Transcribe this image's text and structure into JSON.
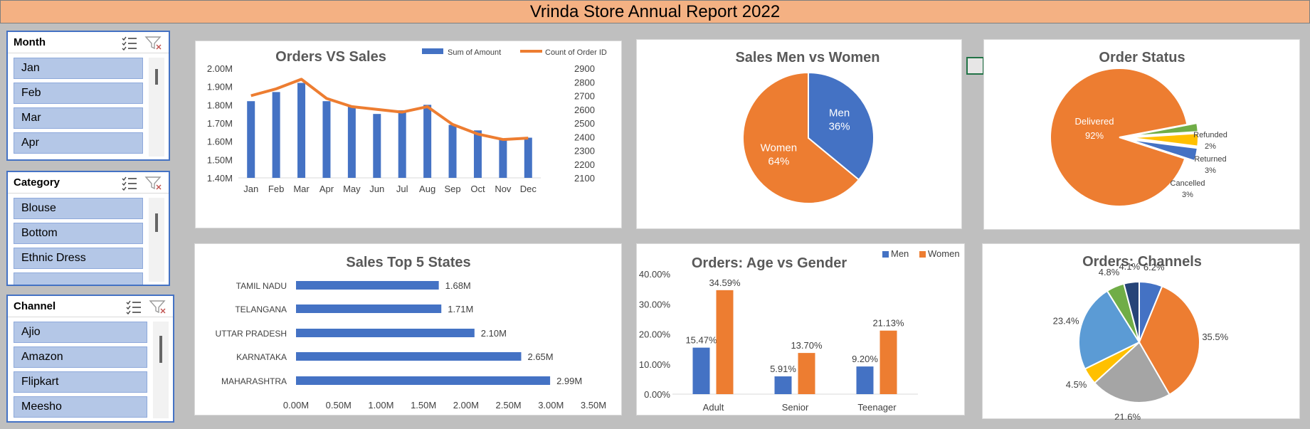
{
  "report_title": "Vrinda Store Annual Report 2022",
  "slicers": {
    "month": {
      "title": "Month",
      "items": [
        "Jan",
        "Feb",
        "Mar",
        "Apr"
      ]
    },
    "category": {
      "title": "Category",
      "items": [
        "Blouse",
        "Bottom",
        "Ethnic Dress",
        ""
      ]
    },
    "channel": {
      "title": "Channel",
      "items": [
        "Ajio",
        "Amazon",
        "Flipkart",
        "Meesho"
      ]
    }
  },
  "icons": {
    "multi_select": "multi-select-icon",
    "clear_filter": "clear-filter-icon"
  },
  "colors": {
    "blue": "#4472c4",
    "orange": "#ed7d31",
    "gray": "#a5a5a5",
    "yellow": "#ffc000",
    "light_blue": "#5b9bd5",
    "green": "#70ad47",
    "navy": "#264478",
    "banner": "#f4b183",
    "slicer_item": "#b4c7e7"
  },
  "chart_data": [
    {
      "type": "bar+line",
      "title": "Orders VS Sales",
      "categories": [
        "Jan",
        "Feb",
        "Mar",
        "Apr",
        "May",
        "Jun",
        "Jul",
        "Aug",
        "Sep",
        "Oct",
        "Nov",
        "Dec"
      ],
      "series": [
        {
          "name": "Sum of Amount",
          "type": "bar",
          "axis": "left",
          "values": [
            1.82,
            1.87,
            1.92,
            1.82,
            1.79,
            1.75,
            1.77,
            1.8,
            1.69,
            1.66,
            1.61,
            1.62
          ]
        },
        {
          "name": "Count of Order ID",
          "type": "line",
          "axis": "right",
          "values": [
            2700,
            2750,
            2820,
            2680,
            2620,
            2600,
            2580,
            2620,
            2490,
            2420,
            2380,
            2390
          ]
        }
      ],
      "y_left": {
        "ticks": [
          "1.40M",
          "1.50M",
          "1.60M",
          "1.70M",
          "1.80M",
          "1.90M",
          "2.00M"
        ],
        "range": [
          1.4,
          2.0
        ]
      },
      "y_right": {
        "ticks": [
          "2100",
          "2200",
          "2300",
          "2400",
          "2500",
          "2600",
          "2700",
          "2800",
          "2900"
        ],
        "range": [
          2100,
          2900
        ]
      },
      "legend": "top-right"
    },
    {
      "type": "pie",
      "title": "Sales Men vs Women",
      "slices": [
        {
          "label": "Men",
          "value": 36,
          "pct": "36%"
        },
        {
          "label": "Women",
          "value": 64,
          "pct": "64%"
        }
      ]
    },
    {
      "type": "pie",
      "title": "Order Status",
      "slices": [
        {
          "label": "Delivered",
          "value": 92,
          "pct": "92%"
        },
        {
          "label": "Refunded",
          "value": 2,
          "pct": "2%"
        },
        {
          "label": "Returned",
          "value": 3,
          "pct": "3%"
        },
        {
          "label": "Cancelled",
          "value": 3,
          "pct": "3%"
        }
      ]
    },
    {
      "type": "bar",
      "orientation": "horizontal",
      "title": "Sales Top 5 States",
      "categories": [
        "TAMIL NADU",
        "TELANGANA",
        "UTTAR PRADESH",
        "KARNATAKA",
        "MAHARASHTRA"
      ],
      "values": [
        1.68,
        1.71,
        2.1,
        2.65,
        2.99
      ],
      "value_labels": [
        "1.68M",
        "1.71M",
        "2.10M",
        "2.65M",
        "2.99M"
      ],
      "x_ticks": [
        "0.00M",
        "0.50M",
        "1.00M",
        "1.50M",
        "2.00M",
        "2.50M",
        "3.00M",
        "3.50M"
      ],
      "xlim": [
        0,
        3.5
      ]
    },
    {
      "type": "bar",
      "title": "Orders: Age vs Gender",
      "categories": [
        "Adult",
        "Senior",
        "Teenager"
      ],
      "series": [
        {
          "name": "Men",
          "values": [
            15.47,
            5.91,
            9.2
          ],
          "labels": [
            "15.47%",
            "5.91%",
            "9.20%"
          ]
        },
        {
          "name": "Women",
          "values": [
            34.59,
            13.7,
            21.13
          ],
          "labels": [
            "34.59%",
            "13.70%",
            "21.13%"
          ]
        }
      ],
      "y_ticks": [
        "0.00%",
        "10.00%",
        "20.00%",
        "30.00%",
        "40.00%"
      ],
      "ylim": [
        0,
        40
      ],
      "legend": "top-right"
    },
    {
      "type": "pie",
      "title": "Orders: Channels",
      "slices": [
        {
          "value": 6.2,
          "pct": "6.2%"
        },
        {
          "value": 35.5,
          "pct": "35.5%"
        },
        {
          "value": 21.6,
          "pct": "21.6%"
        },
        {
          "value": 4.5,
          "pct": "4.5%"
        },
        {
          "value": 23.4,
          "pct": "23.4%"
        },
        {
          "value": 4.8,
          "pct": "4.8%"
        },
        {
          "value": 4.1,
          "pct": "4.1%"
        }
      ]
    }
  ]
}
